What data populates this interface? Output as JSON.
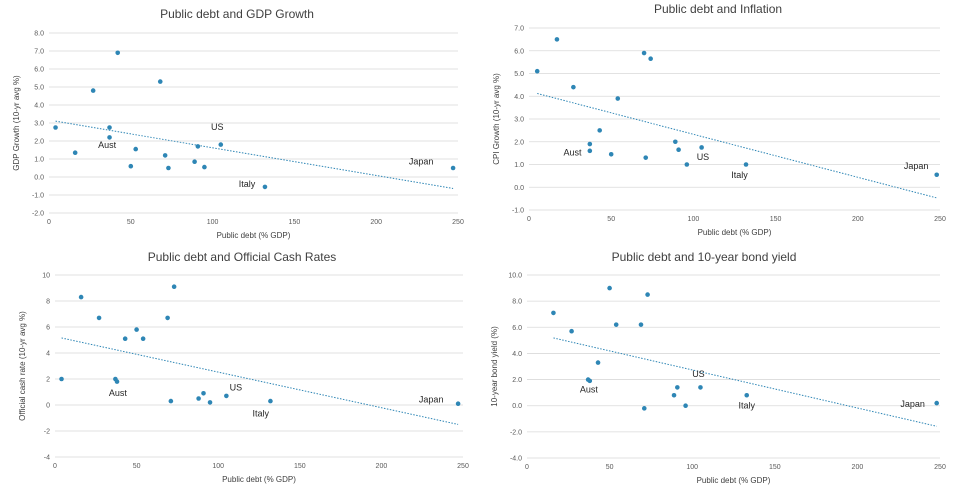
{
  "chart_data": [
    {
      "type": "scatter",
      "title": "Public debt and GDP Growth",
      "xlabel": "Public debt (% GDP)",
      "ylabel": "GDP Growth (10-yr avg %)",
      "xlim": [
        0,
        250
      ],
      "ylim": [
        -2.0,
        8.0
      ],
      "xticks": [
        "0",
        "50",
        "100",
        "150",
        "200",
        "250"
      ],
      "yticks": [
        "-2.0",
        "-1.0",
        "0.0",
        "1.0",
        "2.0",
        "3.0",
        "4.0",
        "5.0",
        "6.0",
        "7.0",
        "8.0"
      ],
      "grid": true,
      "trendline": true,
      "color": "#2E86B5",
      "points": [
        {
          "x": 4,
          "y": 2.75
        },
        {
          "x": 16,
          "y": 1.35
        },
        {
          "x": 27,
          "y": 4.8
        },
        {
          "x": 37,
          "y": 2.75
        },
        {
          "x": 37,
          "y": 2.2
        },
        {
          "x": 42,
          "y": 6.9
        },
        {
          "x": 50,
          "y": 0.6
        },
        {
          "x": 53,
          "y": 1.55
        },
        {
          "x": 68,
          "y": 5.3
        },
        {
          "x": 71,
          "y": 1.2
        },
        {
          "x": 73,
          "y": 0.5
        },
        {
          "x": 89,
          "y": 0.85
        },
        {
          "x": 91,
          "y": 1.7
        },
        {
          "x": 95,
          "y": 0.55
        },
        {
          "x": 105,
          "y": 1.8
        },
        {
          "x": 132,
          "y": -0.55
        },
        {
          "x": 247,
          "y": 0.5
        }
      ],
      "annotations": [
        {
          "text": "Aust",
          "x": 30,
          "y": 1.6
        },
        {
          "text": "US",
          "x": 99,
          "y": 2.6
        },
        {
          "text": "Italy",
          "x": 116,
          "y": -0.55
        },
        {
          "text": "Japan",
          "x": 220,
          "y": 0.7
        }
      ]
    },
    {
      "type": "scatter",
      "title": "Public debt and Inflation",
      "xlabel": "Public debt (% GDP)",
      "ylabel": "CPI Growth (10-yr avg %)",
      "xlim": [
        0,
        250
      ],
      "ylim": [
        -1.0,
        7.0
      ],
      "xticks": [
        "0",
        "50",
        "100",
        "150",
        "200",
        "250"
      ],
      "yticks": [
        "-1.0",
        "0.0",
        "1.0",
        "2.0",
        "3.0",
        "4.0",
        "5.0",
        "6.0",
        "7.0"
      ],
      "grid": true,
      "trendline": true,
      "color": "#2E86B5",
      "points": [
        {
          "x": 5,
          "y": 5.1
        },
        {
          "x": 17,
          "y": 6.5
        },
        {
          "x": 27,
          "y": 4.4
        },
        {
          "x": 37,
          "y": 1.9
        },
        {
          "x": 37,
          "y": 1.6
        },
        {
          "x": 43,
          "y": 2.5
        },
        {
          "x": 50,
          "y": 1.45
        },
        {
          "x": 54,
          "y": 3.9
        },
        {
          "x": 70,
          "y": 5.9
        },
        {
          "x": 71,
          "y": 1.3
        },
        {
          "x": 74,
          "y": 5.65
        },
        {
          "x": 89,
          "y": 2.0
        },
        {
          "x": 91,
          "y": 1.65
        },
        {
          "x": 96,
          "y": 1.0
        },
        {
          "x": 105,
          "y": 1.75
        },
        {
          "x": 132,
          "y": 1.0
        },
        {
          "x": 248,
          "y": 0.55
        }
      ],
      "annotations": [
        {
          "text": "Aust",
          "x": 21,
          "y": 1.4
        },
        {
          "text": "US",
          "x": 102,
          "y": 1.2
        },
        {
          "text": "Italy",
          "x": 123,
          "y": 0.4
        },
        {
          "text": "Japan",
          "x": 228,
          "y": 0.8
        }
      ]
    },
    {
      "type": "scatter",
      "title": "Public debt and Official Cash Rates",
      "xlabel": "Public debt (% GDP)",
      "ylabel": "Official cash rate (10-yr avg %)",
      "xlim": [
        0,
        250
      ],
      "ylim": [
        -4,
        10
      ],
      "xticks": [
        "0",
        "50",
        "100",
        "150",
        "200",
        "250"
      ],
      "yticks": [
        "-4",
        "-2",
        "0",
        "2",
        "4",
        "6",
        "8",
        "10"
      ],
      "grid": true,
      "trendline": true,
      "color": "#2E86B5",
      "points": [
        {
          "x": 4,
          "y": 2.0
        },
        {
          "x": 16,
          "y": 8.3
        },
        {
          "x": 27,
          "y": 6.7
        },
        {
          "x": 37,
          "y": 2.0
        },
        {
          "x": 38,
          "y": 1.8
        },
        {
          "x": 43,
          "y": 5.1
        },
        {
          "x": 50,
          "y": 5.8
        },
        {
          "x": 54,
          "y": 5.1
        },
        {
          "x": 69,
          "y": 6.7
        },
        {
          "x": 71,
          "y": 0.3
        },
        {
          "x": 73,
          "y": 9.1
        },
        {
          "x": 88,
          "y": 0.5
        },
        {
          "x": 91,
          "y": 0.9
        },
        {
          "x": 95,
          "y": 0.2
        },
        {
          "x": 105,
          "y": 0.7
        },
        {
          "x": 132,
          "y": 0.3
        },
        {
          "x": 247,
          "y": 0.1
        }
      ],
      "annotations": [
        {
          "text": "Aust",
          "x": 33,
          "y": 0.7
        },
        {
          "text": "US",
          "x": 107,
          "y": 1.1
        },
        {
          "text": "Italy",
          "x": 121,
          "y": -0.9
        },
        {
          "text": "Japan",
          "x": 223,
          "y": 0.2
        }
      ]
    },
    {
      "type": "scatter",
      "title": "Public debt and 10-year bond yield",
      "xlabel": "Public debt (% GDP)",
      "ylabel": "10-year bond yield (%)",
      "xlim": [
        0,
        250
      ],
      "ylim": [
        -4.0,
        10.0
      ],
      "xticks": [
        "0",
        "50",
        "100",
        "150",
        "200",
        "250"
      ],
      "yticks": [
        "-4.0",
        "-2.0",
        "0.0",
        "2.0",
        "4.0",
        "6.0",
        "8.0",
        "10.0"
      ],
      "grid": true,
      "trendline": true,
      "color": "#2E86B5",
      "points": [
        {
          "x": 16,
          "y": 7.1
        },
        {
          "x": 27,
          "y": 5.7
        },
        {
          "x": 37,
          "y": 2.0
        },
        {
          "x": 38,
          "y": 1.9
        },
        {
          "x": 43,
          "y": 3.3
        },
        {
          "x": 50,
          "y": 9.0
        },
        {
          "x": 54,
          "y": 6.2
        },
        {
          "x": 69,
          "y": 6.2
        },
        {
          "x": 71,
          "y": -0.2
        },
        {
          "x": 73,
          "y": 8.5
        },
        {
          "x": 89,
          "y": 0.8
        },
        {
          "x": 91,
          "y": 1.4
        },
        {
          "x": 96,
          "y": 0.0
        },
        {
          "x": 105,
          "y": 1.4
        },
        {
          "x": 133,
          "y": 0.8
        },
        {
          "x": 248,
          "y": 0.2
        }
      ],
      "annotations": [
        {
          "text": "Aust",
          "x": 32,
          "y": 1.0
        },
        {
          "text": "US",
          "x": 100,
          "y": 2.2
        },
        {
          "text": "Italy",
          "x": 128,
          "y": -0.2
        },
        {
          "text": "Japan",
          "x": 226,
          "y": -0.1
        }
      ]
    }
  ]
}
